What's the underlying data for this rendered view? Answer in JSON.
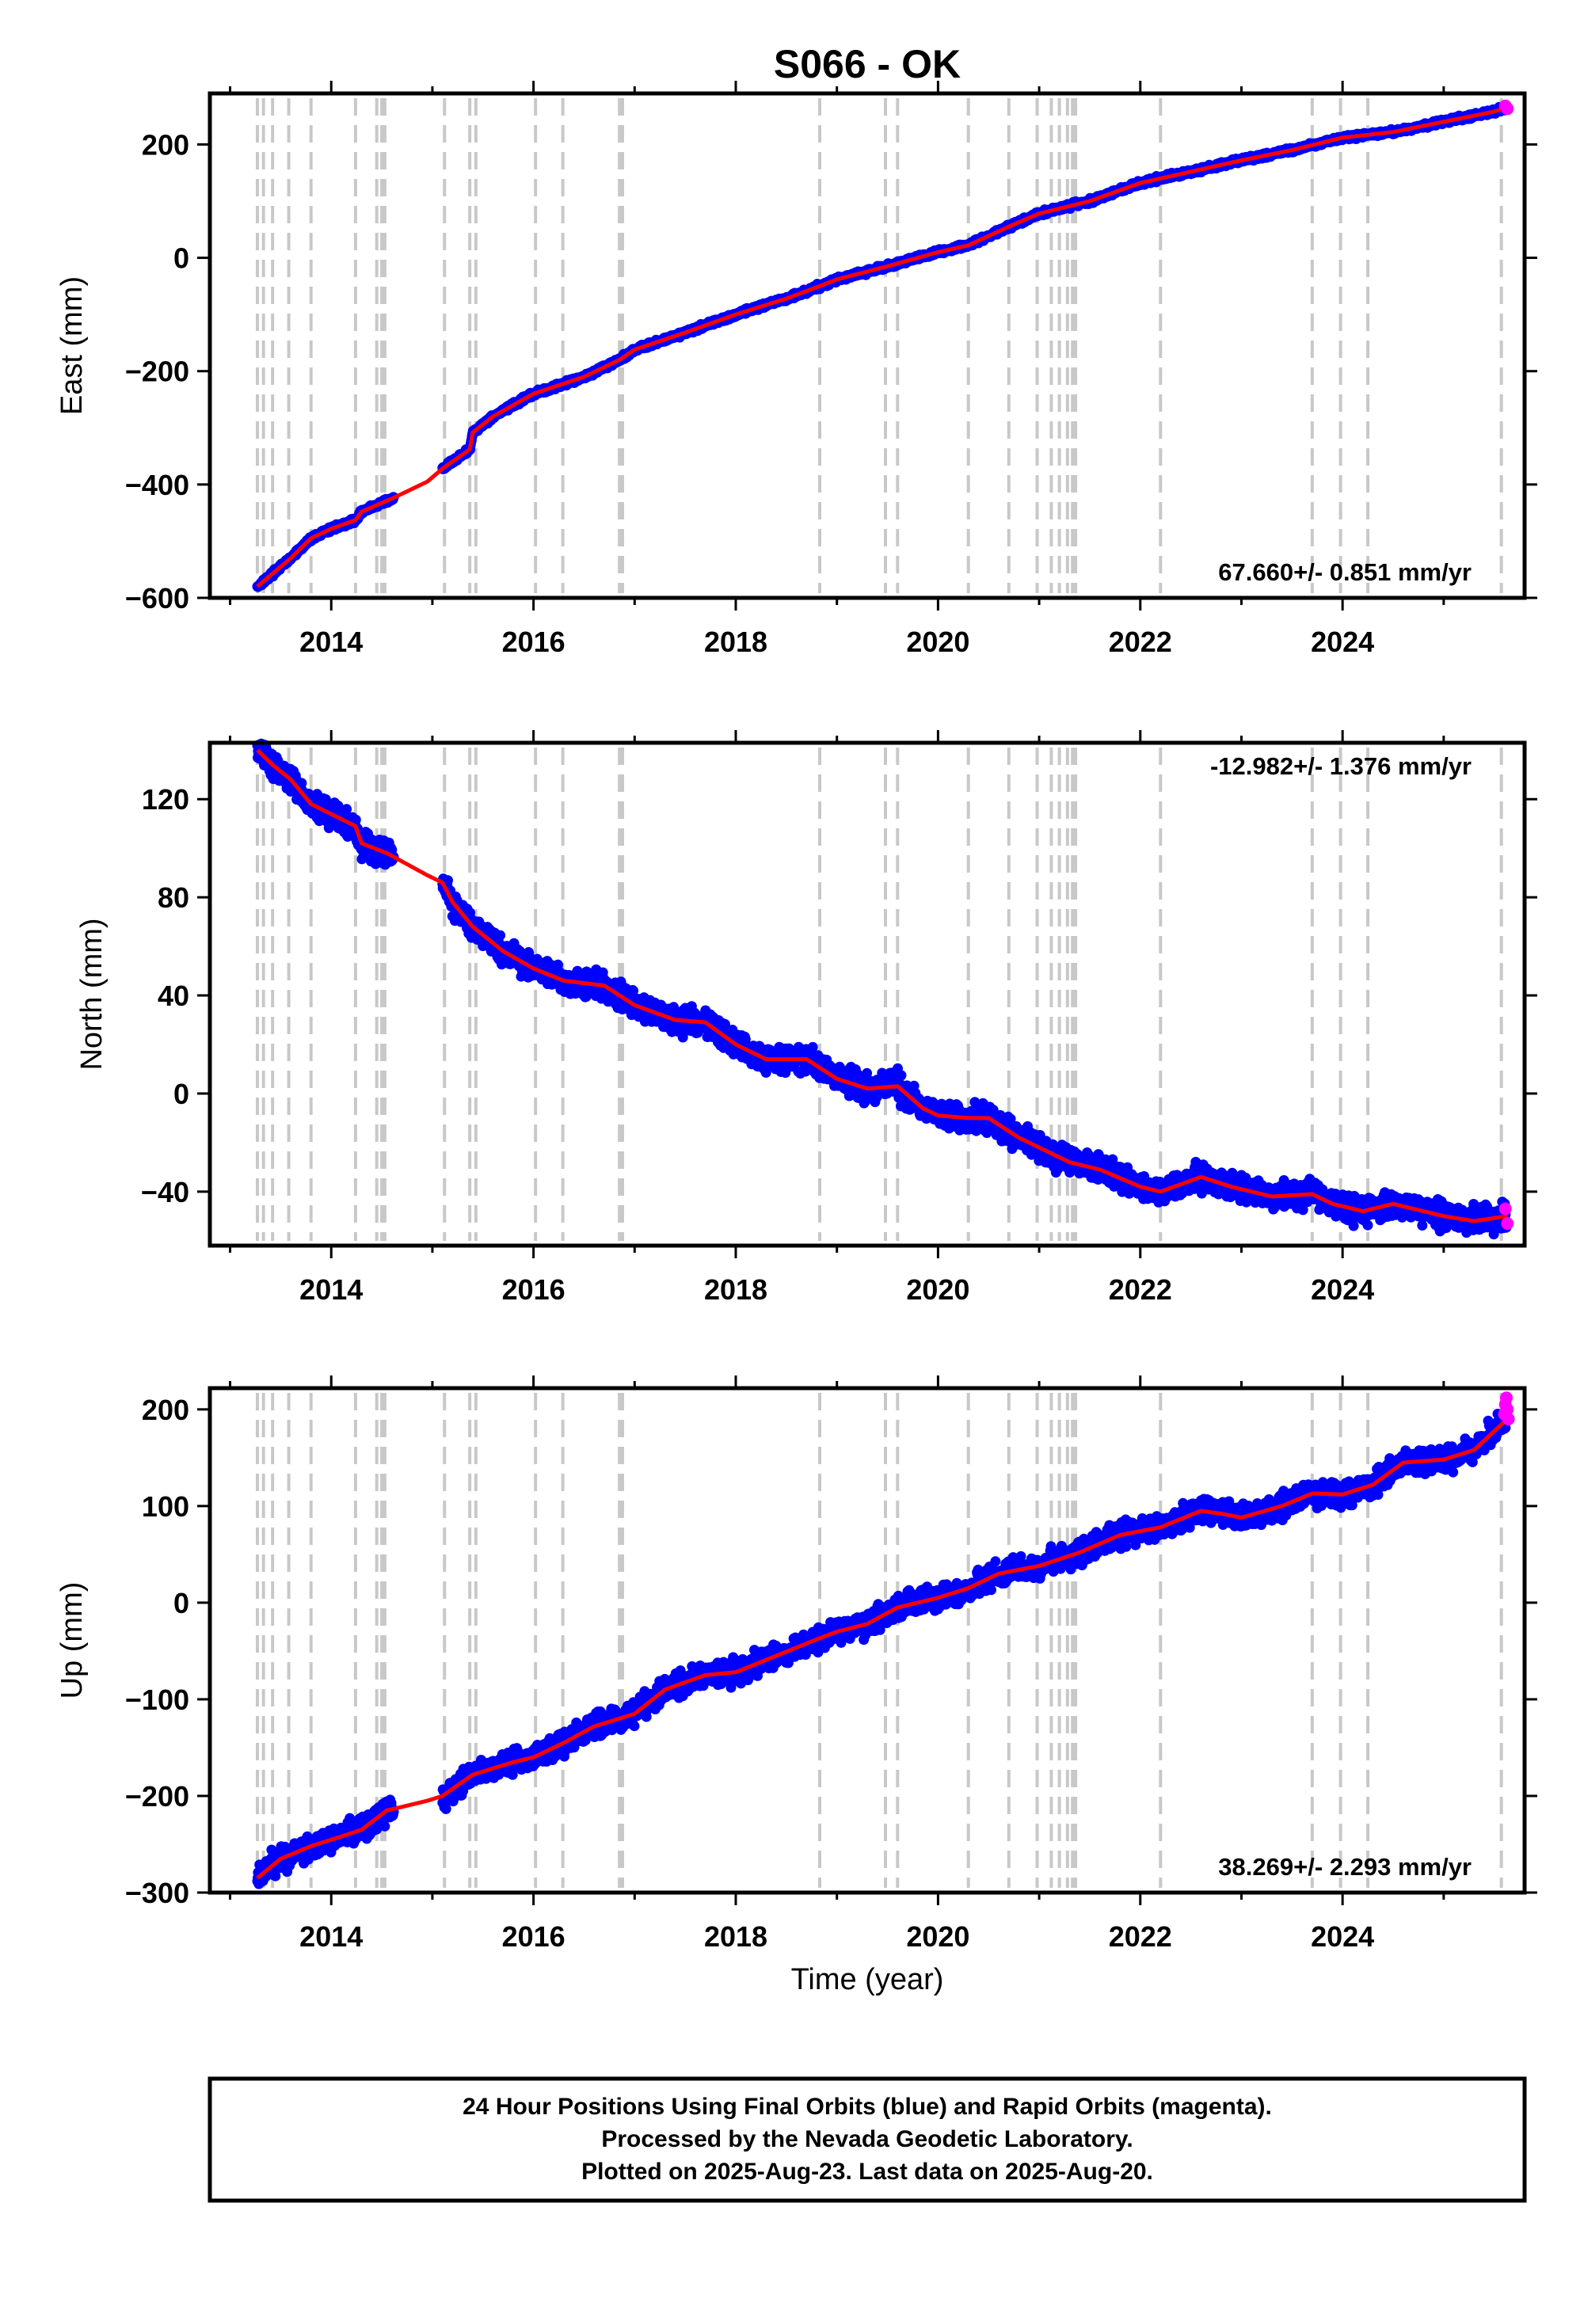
{
  "chart_data": {
    "title": "S066 - OK",
    "xlabel": "Time (year)",
    "x_ticks": [
      2014,
      2016,
      2018,
      2020,
      2022,
      2024
    ],
    "xlim": [
      2012.8,
      2025.8
    ],
    "colors": {
      "final_orbits": "#0000ff",
      "rapid_orbits": "#ff00ff",
      "model": "#ff0000",
      "event_lines": "#c8c8c8"
    },
    "event_lines": [
      2013.27,
      2013.33,
      2013.42,
      2013.58,
      2013.8,
      2014.24,
      2014.45,
      2014.5,
      2014.53,
      2015.12,
      2015.37,
      2015.43,
      2016.02,
      2016.29,
      2016.85,
      2016.88,
      2018.83,
      2019.48,
      2019.6,
      2020.3,
      2020.7,
      2020.98,
      2021.12,
      2021.2,
      2021.28,
      2021.33,
      2021.36,
      2022.2,
      2023.7,
      2023.98,
      2024.25,
      2025.57
    ],
    "panels": [
      {
        "id": "east",
        "ylabel": "East (mm)",
        "ylim": [
          -600,
          290
        ],
        "y_ticks": [
          -600,
          -400,
          -200,
          0,
          200
        ],
        "rate_text": "67.660+/- 0.851 mm/yr",
        "rate_position": "bottom-right",
        "scatter": 2,
        "series": {
          "x": [
            2013.27,
            2013.6,
            2013.8,
            2014.0,
            2014.24,
            2014.3,
            2014.6,
            2014.95,
            2015.1,
            2015.37,
            2015.4,
            2015.6,
            2016.0,
            2016.5,
            2016.85,
            2017.0,
            2017.5,
            2018.0,
            2018.5,
            2018.83,
            2019.0,
            2019.5,
            2020.0,
            2020.3,
            2020.7,
            2021.0,
            2021.5,
            2022.0,
            2022.5,
            2023.0,
            2023.5,
            2024.0,
            2024.5,
            2025.0,
            2025.5,
            2025.63
          ],
          "y": [
            -580,
            -530,
            -495,
            -478,
            -463,
            -448,
            -425,
            -395,
            -372,
            -338,
            -308,
            -280,
            -240,
            -210,
            -180,
            -162,
            -132,
            -100,
            -72,
            -50,
            -38,
            -15,
            10,
            22,
            55,
            78,
            100,
            132,
            152,
            172,
            190,
            212,
            222,
            240,
            258,
            265
          ]
        },
        "rapid_points": [
          [
            2025.61,
            268
          ],
          [
            2025.63,
            263
          ]
        ]
      },
      {
        "id": "north",
        "ylabel": "North (mm)",
        "ylim": [
          -62,
          143
        ],
        "y_ticks": [
          -40,
          0,
          40,
          80,
          120
        ],
        "rate_text": "-12.982+/- 1.376 mm/yr",
        "rate_position": "top-right",
        "scatter": 2.5,
        "series": {
          "x": [
            2013.27,
            2013.42,
            2013.6,
            2013.8,
            2014.24,
            2014.3,
            2014.55,
            2014.95,
            2015.1,
            2015.2,
            2015.4,
            2015.7,
            2016.0,
            2016.3,
            2016.7,
            2017.0,
            2017.4,
            2017.7,
            2018.0,
            2018.3,
            2018.7,
            2019.0,
            2019.3,
            2019.6,
            2019.85,
            2020.0,
            2020.3,
            2020.5,
            2020.8,
            2021.0,
            2021.3,
            2021.6,
            2022.0,
            2022.2,
            2022.6,
            2022.9,
            2023.3,
            2023.7,
            2023.9,
            2024.2,
            2024.5,
            2024.8,
            2025.0,
            2025.3,
            2025.63
          ],
          "y": [
            140,
            134,
            128,
            118,
            109,
            102,
            98,
            89,
            86,
            78,
            68,
            58,
            51,
            46,
            44,
            36,
            30,
            29,
            20,
            14,
            14,
            6,
            2,
            3,
            -6,
            -9,
            -10,
            -10,
            -18,
            -22,
            -28,
            -31,
            -38,
            -40,
            -34,
            -38,
            -42,
            -41,
            -45,
            -48,
            -45,
            -48,
            -50,
            -52,
            -50
          ]
        },
        "rapid_points": [
          [
            2025.61,
            -47
          ],
          [
            2025.63,
            -53
          ]
        ]
      },
      {
        "id": "up",
        "ylabel": "Up (mm)",
        "ylim": [
          -300,
          222
        ],
        "y_ticks": [
          -300,
          -200,
          -100,
          0,
          100,
          200
        ],
        "rate_text": "38.269+/- 2.293 mm/yr",
        "rate_position": "bottom-right",
        "scatter": 6,
        "series": {
          "x": [
            2013.27,
            2013.5,
            2013.8,
            2014.1,
            2014.3,
            2014.55,
            2014.95,
            2015.1,
            2015.4,
            2015.8,
            2016.0,
            2016.3,
            2016.6,
            2016.85,
            2017.0,
            2017.3,
            2017.7,
            2018.0,
            2018.4,
            2018.8,
            2019.0,
            2019.3,
            2019.6,
            2020.0,
            2020.3,
            2020.6,
            2021.0,
            2021.4,
            2021.8,
            2022.2,
            2022.6,
            2022.8,
            2023.0,
            2023.4,
            2023.7,
            2024.0,
            2024.3,
            2024.6,
            2025.0,
            2025.3,
            2025.63
          ],
          "y": [
            -285,
            -265,
            -252,
            -242,
            -235,
            -215,
            -205,
            -200,
            -178,
            -165,
            -160,
            -145,
            -128,
            -120,
            -115,
            -90,
            -75,
            -72,
            -55,
            -38,
            -30,
            -22,
            -5,
            5,
            15,
            30,
            38,
            52,
            70,
            78,
            95,
            92,
            88,
            100,
            113,
            112,
            122,
            145,
            148,
            158,
            190
          ]
        },
        "rapid_points": [
          [
            2025.6,
            195
          ],
          [
            2025.61,
            205
          ],
          [
            2025.62,
            212
          ],
          [
            2025.63,
            200
          ],
          [
            2025.64,
            190
          ]
        ]
      }
    ]
  },
  "footer": {
    "line1": "24 Hour Positions Using Final Orbits (blue) and Rapid Orbits (magenta).",
    "line2": "Processed by the Nevada Geodetic Laboratory.",
    "line3": "Plotted on 2025-Aug-23. Last data on 2025-Aug-20."
  }
}
